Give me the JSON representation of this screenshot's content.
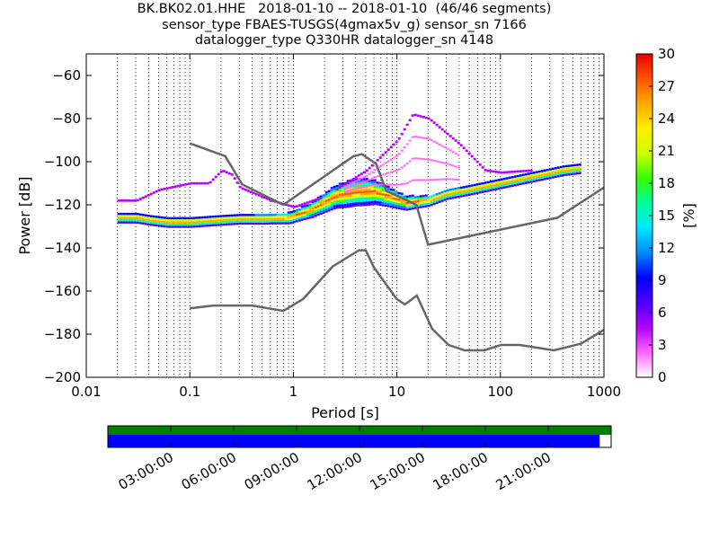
{
  "title_lines": [
    "BK.BK02.01.HHE   2018-01-10 -- 2018-01-10  (46/46 segments)",
    "sensor_type FBAES-TUSGS(4gmax5v_g) sensor_sn 7166",
    "datalogger_type Q330HR datalogger_sn 4148"
  ],
  "chart_data": {
    "type": "heatmap",
    "xlabel": "Period [s]",
    "ylabel": "Power [dB]",
    "xscale": "log",
    "xlim": [
      0.01,
      1000
    ],
    "ylim": [
      -200,
      -50
    ],
    "x_ticks": [
      0.01,
      0.1,
      1,
      10,
      100,
      1000
    ],
    "x_tick_labels": [
      "0.01",
      "0.1",
      "1",
      "10",
      "100",
      "1000"
    ],
    "y_ticks": [
      -200,
      -180,
      -160,
      -140,
      -120,
      -100,
      -80,
      -60
    ],
    "y_tick_labels": [
      "−200",
      "−180",
      "−160",
      "−140",
      "−120",
      "−100",
      "−80",
      "−60"
    ],
    "grid": "vertical dotted",
    "colorbar": {
      "label": "[%]",
      "min": 0,
      "max": 30,
      "ticks": [
        0,
        3,
        6,
        9,
        12,
        15,
        18,
        21,
        24,
        27,
        30
      ],
      "colors": [
        "#ffffff",
        "#ff66ff",
        "#b400ff",
        "#4b00ff",
        "#0000ff",
        "#0088ff",
        "#00e5ff",
        "#00ff9a",
        "#33ff00",
        "#ccff00",
        "#ffee00",
        "#ffaa00",
        "#ff5500",
        "#e60000"
      ]
    },
    "noise_models": [
      {
        "name": "NHNM",
        "points": [
          [
            0.1,
            -91.5
          ],
          [
            0.22,
            -97.4
          ],
          [
            0.32,
            -110.5
          ],
          [
            0.8,
            -120
          ],
          [
            3.8,
            -97.5
          ],
          [
            4.6,
            -96.5
          ],
          [
            6.3,
            -101
          ],
          [
            7.9,
            -113.5
          ],
          [
            15.4,
            -120
          ],
          [
            20,
            -138.5
          ],
          [
            354.8,
            -126
          ],
          [
            1000,
            -112
          ]
        ]
      },
      {
        "name": "NLNM",
        "points": [
          [
            0.1,
            -168
          ],
          [
            0.17,
            -166.7
          ],
          [
            0.4,
            -166.7
          ],
          [
            0.8,
            -169.2
          ],
          [
            1.24,
            -163.7
          ],
          [
            2.4,
            -148.6
          ],
          [
            4.3,
            -141.1
          ],
          [
            5,
            -141.1
          ],
          [
            6,
            -149
          ],
          [
            10,
            -163.8
          ],
          [
            12,
            -166.2
          ],
          [
            15.6,
            -162.1
          ],
          [
            21.9,
            -177.5
          ],
          [
            31.6,
            -185
          ],
          [
            45,
            -187.5
          ],
          [
            70,
            -187.5
          ],
          [
            101,
            -185
          ],
          [
            154,
            -185
          ],
          [
            328,
            -187.5
          ],
          [
            600,
            -184.4
          ],
          [
            1000,
            -178
          ]
        ]
      }
    ],
    "psd_bands": [
      {
        "name": "main",
        "points": [
          [
            0.02,
            -126
          ],
          [
            0.03,
            -126
          ],
          [
            0.04,
            -127
          ],
          [
            0.06,
            -128
          ],
          [
            0.1,
            -128
          ],
          [
            0.2,
            -127
          ],
          [
            0.3,
            -126.5
          ],
          [
            0.5,
            -126.5
          ],
          [
            0.9,
            -126
          ],
          [
            1.5,
            -122
          ],
          [
            2.5,
            -116
          ],
          [
            4,
            -114
          ],
          [
            6,
            -114
          ],
          [
            8,
            -116
          ],
          [
            12,
            -119
          ],
          [
            20,
            -118
          ],
          [
            30,
            -115
          ],
          [
            50,
            -113
          ],
          [
            100,
            -110
          ],
          [
            200,
            -107
          ],
          [
            400,
            -104
          ],
          [
            600,
            -103
          ]
        ]
      },
      {
        "name": "upper",
        "points": [
          [
            0.03,
            -118
          ],
          [
            0.05,
            -113
          ],
          [
            0.1,
            -110
          ],
          [
            0.15,
            -110
          ],
          [
            0.2,
            -104
          ],
          [
            0.25,
            -106
          ],
          [
            0.3,
            -112
          ],
          [
            0.6,
            -118
          ],
          [
            1,
            -121
          ],
          [
            2,
            -116
          ],
          [
            5,
            -104
          ],
          [
            10,
            -90
          ],
          [
            14,
            -78
          ],
          [
            20,
            -80
          ],
          [
            40,
            -92
          ],
          [
            70,
            -104
          ],
          [
            100,
            -105
          ],
          [
            200,
            -104
          ],
          [
            600,
            -101
          ]
        ]
      }
    ],
    "timeline": {
      "tick_labels": [
        "03:00:00",
        "06:00:00",
        "09:00:00",
        "12:00:00",
        "15:00:00",
        "18:00:00",
        "21:00:00"
      ],
      "tick_hours": [
        3,
        6,
        9,
        12,
        15,
        18,
        21
      ],
      "range_hours": [
        0,
        24
      ],
      "coverage_bar": {
        "start": 0,
        "end": 24,
        "color": "#008000"
      },
      "data_bar": {
        "start": 0,
        "end": 23.45,
        "color": "#0000ff"
      }
    }
  }
}
